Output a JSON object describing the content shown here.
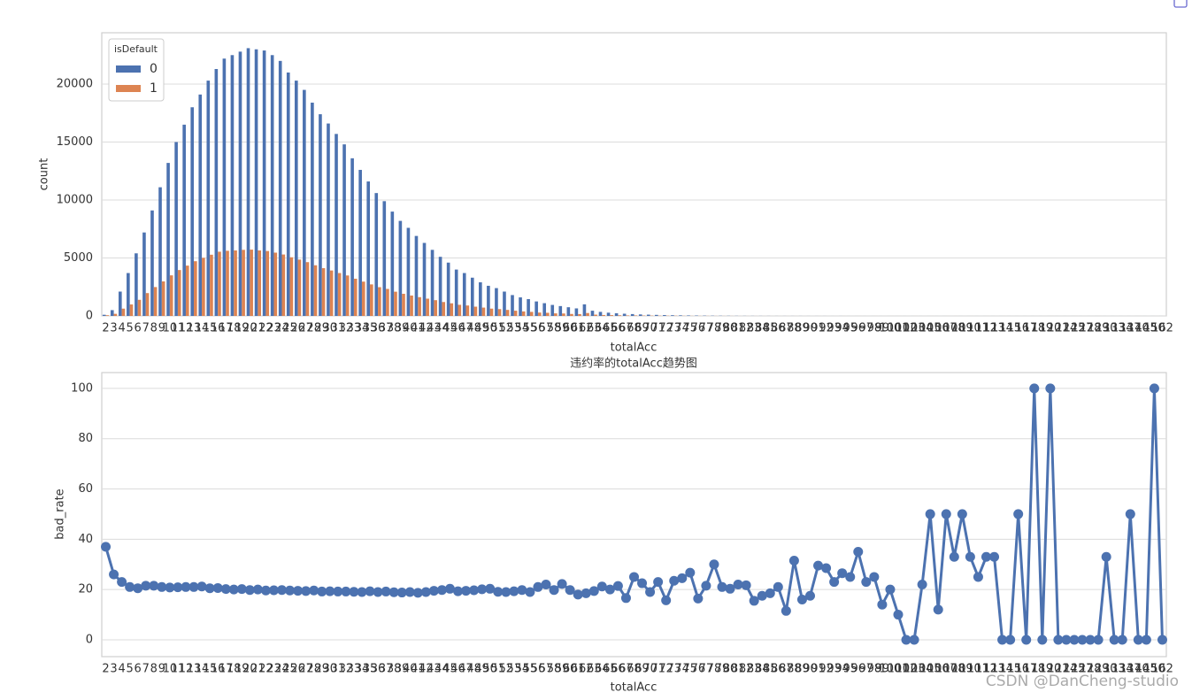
{
  "chart_data": [
    {
      "type": "grouped_bar",
      "xlabel": "totalAcc",
      "ylabel": "count",
      "categories": [
        2,
        3,
        4,
        5,
        6,
        7,
        8,
        9,
        10,
        11,
        12,
        13,
        14,
        15,
        16,
        17,
        18,
        19,
        20,
        21,
        22,
        23,
        24,
        25,
        26,
        27,
        28,
        29,
        30,
        31,
        32,
        33,
        34,
        35,
        36,
        37,
        38,
        39,
        40,
        41,
        42,
        43,
        44,
        45,
        46,
        47,
        48,
        49,
        50,
        51,
        52,
        53,
        54,
        55,
        56,
        57,
        58,
        59,
        60,
        61,
        62,
        63,
        64,
        65,
        66,
        67,
        68,
        69,
        70,
        71,
        72,
        73,
        74,
        75,
        76,
        77,
        78,
        79,
        80,
        81,
        82,
        83,
        84,
        85,
        86,
        87,
        88,
        89,
        90,
        91,
        92,
        93,
        94,
        95,
        96,
        97,
        98,
        99,
        100,
        101,
        102,
        103,
        104,
        105,
        106,
        107,
        108,
        109,
        110,
        111,
        112,
        113,
        114,
        115,
        116,
        117,
        118,
        119,
        120,
        121,
        124,
        125,
        127,
        128,
        129,
        130,
        133,
        134,
        137,
        140,
        145,
        150,
        162
      ],
      "legend_title": "isDefault",
      "legend": "upper left",
      "grid": true,
      "series": [
        {
          "name": "0",
          "color": "#4c72b0",
          "values": [
            100,
            500,
            2100,
            3700,
            5400,
            7200,
            9100,
            11100,
            13200,
            15000,
            16500,
            18000,
            19100,
            20300,
            21300,
            22200,
            22500,
            22800,
            23100,
            23000,
            22900,
            22500,
            22000,
            21000,
            20300,
            19500,
            18400,
            17400,
            16600,
            15700,
            14800,
            13600,
            12600,
            11600,
            10600,
            9900,
            9000,
            8200,
            7600,
            6900,
            6300,
            5700,
            5100,
            4600,
            4000,
            3700,
            3300,
            2900,
            2600,
            2400,
            2100,
            1800,
            1600,
            1450,
            1250,
            1100,
            950,
            850,
            750,
            650,
            1000,
            450,
            350,
            280,
            230,
            190,
            160,
            130,
            110,
            90,
            75,
            60,
            50,
            40,
            32,
            25,
            20,
            16,
            13,
            10,
            8,
            7,
            6,
            5,
            4,
            3,
            3,
            3,
            2,
            2,
            2,
            1,
            2,
            1,
            1,
            1,
            1,
            1,
            1,
            1,
            1,
            1,
            1,
            1,
            1,
            1,
            0,
            1,
            1,
            1,
            1,
            1,
            1,
            1,
            1,
            1,
            1,
            1,
            1,
            1,
            1,
            1,
            1,
            1,
            1,
            1,
            1,
            1,
            1,
            1,
            1,
            1,
            1
          ]
        },
        {
          "name": "1",
          "color": "#dd8452",
          "values": [
            60,
            180,
            630,
            990,
            1390,
            1970,
            2490,
            2980,
            3500,
            3960,
            4340,
            4720,
            5010,
            5280,
            5540,
            5620,
            5650,
            5700,
            5720,
            5650,
            5600,
            5460,
            5300,
            5060,
            4860,
            4640,
            4370,
            4120,
            3920,
            3700,
            3490,
            3210,
            2960,
            2720,
            2480,
            2330,
            2090,
            1910,
            1760,
            1620,
            1490,
            1360,
            1200,
            1090,
            960,
            900,
            800,
            720,
            630,
            590,
            520,
            450,
            390,
            350,
            290,
            270,
            220,
            210,
            170,
            160,
            250,
            110,
            80,
            70,
            55,
            40,
            40,
            30,
            25,
            20,
            18,
            18,
            12,
            8,
            8,
            7,
            5,
            4,
            4,
            2,
            2,
            2,
            1,
            1,
            1,
            1,
            1,
            0,
            0,
            1,
            0,
            0,
            1,
            0,
            1,
            0,
            1,
            0,
            1,
            1,
            0,
            1,
            0,
            1,
            0,
            1,
            1,
            0,
            1,
            0,
            1,
            0,
            1,
            0,
            0,
            0,
            0,
            0,
            1,
            0,
            0,
            1,
            0,
            0,
            1,
            0,
            0,
            0,
            0,
            1,
            0,
            0,
            0
          ]
        }
      ],
      "ylim": [
        0,
        24430
      ],
      "yticks": [
        0,
        5000,
        10000,
        15000,
        20000
      ]
    },
    {
      "type": "point",
      "title": "违约率的totalAcc趋势图",
      "xlabel": "totalAcc",
      "ylabel": "bad_rate",
      "grid": true,
      "color": "#4c72b0",
      "categories": [
        2,
        3,
        4,
        5,
        6,
        7,
        8,
        9,
        10,
        11,
        12,
        13,
        14,
        15,
        16,
        17,
        18,
        19,
        20,
        21,
        22,
        23,
        24,
        25,
        26,
        27,
        28,
        29,
        30,
        31,
        32,
        33,
        34,
        35,
        36,
        37,
        38,
        39,
        40,
        41,
        42,
        43,
        44,
        45,
        46,
        47,
        48,
        49,
        50,
        51,
        52,
        53,
        54,
        55,
        56,
        57,
        58,
        59,
        60,
        61,
        62,
        63,
        64,
        65,
        66,
        67,
        68,
        69,
        70,
        71,
        72,
        73,
        74,
        75,
        76,
        77,
        78,
        79,
        80,
        81,
        82,
        83,
        84,
        85,
        86,
        87,
        88,
        89,
        90,
        91,
        92,
        93,
        94,
        95,
        96,
        97,
        98,
        99,
        100,
        101,
        102,
        103,
        104,
        105,
        106,
        107,
        108,
        109,
        110,
        111,
        112,
        113,
        114,
        115,
        116,
        117,
        118,
        119,
        120,
        121,
        124,
        125,
        127,
        128,
        129,
        130,
        133,
        134,
        137,
        140,
        145,
        150,
        162
      ],
      "values": [
        37,
        26,
        23,
        21,
        20.5,
        21.5,
        21.5,
        21,
        20.8,
        20.9,
        21,
        21,
        21.2,
        20.5,
        20.6,
        20.2,
        20,
        20.2,
        19.8,
        20,
        19.6,
        19.7,
        19.8,
        19.6,
        19.5,
        19.4,
        19.6,
        19.2,
        19.3,
        19.2,
        19.2,
        19.1,
        19,
        19.3,
        19,
        19.2,
        18.9,
        18.8,
        19,
        18.7,
        19,
        19.5,
        19.8,
        20.3,
        19.3,
        19.5,
        19.7,
        20.1,
        20.3,
        19.1,
        19,
        19.3,
        19.8,
        19,
        21,
        22,
        19.8,
        22.2,
        19.8,
        18,
        18.5,
        19.4,
        21.2,
        20,
        21.4,
        16.6,
        25,
        22.5,
        19,
        23,
        15.7,
        23.5,
        24.5,
        26.7,
        16.4,
        21.5,
        30,
        21,
        20.3,
        22,
        21.7,
        15.5,
        17.5,
        18.5,
        21,
        11.5,
        31.5,
        16,
        17.5,
        29.5,
        28.5,
        23,
        26.5,
        25,
        35,
        23,
        25,
        14,
        20,
        10,
        0,
        0,
        22,
        50,
        12,
        50,
        33,
        50,
        33,
        25,
        33,
        33,
        0,
        0,
        50,
        0,
        100,
        0,
        100,
        0,
        0,
        0,
        0,
        0,
        0,
        33,
        0,
        0,
        50,
        0,
        0,
        100,
        0
      ],
      "ylim": [
        -6.7,
        106.3
      ],
      "yticks": [
        0,
        20,
        40,
        60,
        80,
        100
      ]
    }
  ],
  "watermark": "CSDN @DanCheng-studio"
}
